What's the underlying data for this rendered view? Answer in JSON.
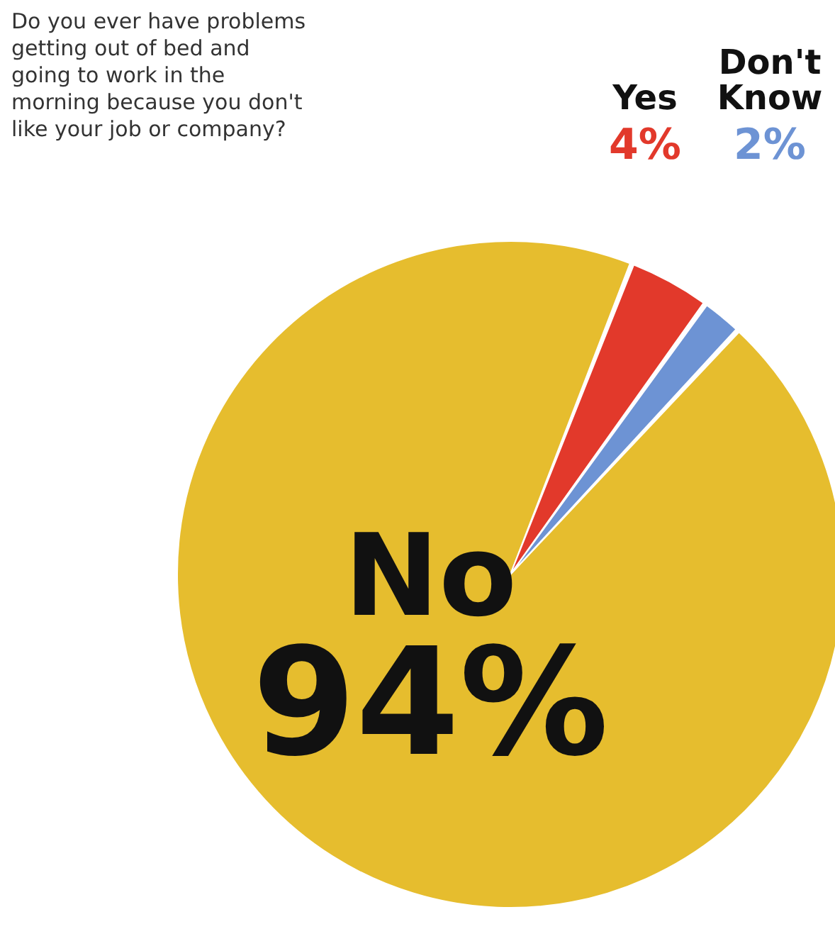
{
  "chart_data": {
    "type": "pie",
    "title": "Do you ever have problems getting out of bed and going to work in the morning because you don't like your job or company?",
    "categories": [
      "No",
      "Yes",
      "Don't Know"
    ],
    "values": [
      94,
      4,
      2
    ],
    "colors": [
      "#e6bd2e",
      "#e2392b",
      "#6d93d4"
    ],
    "value_labels": [
      "94%",
      "4%",
      "2%"
    ]
  }
}
